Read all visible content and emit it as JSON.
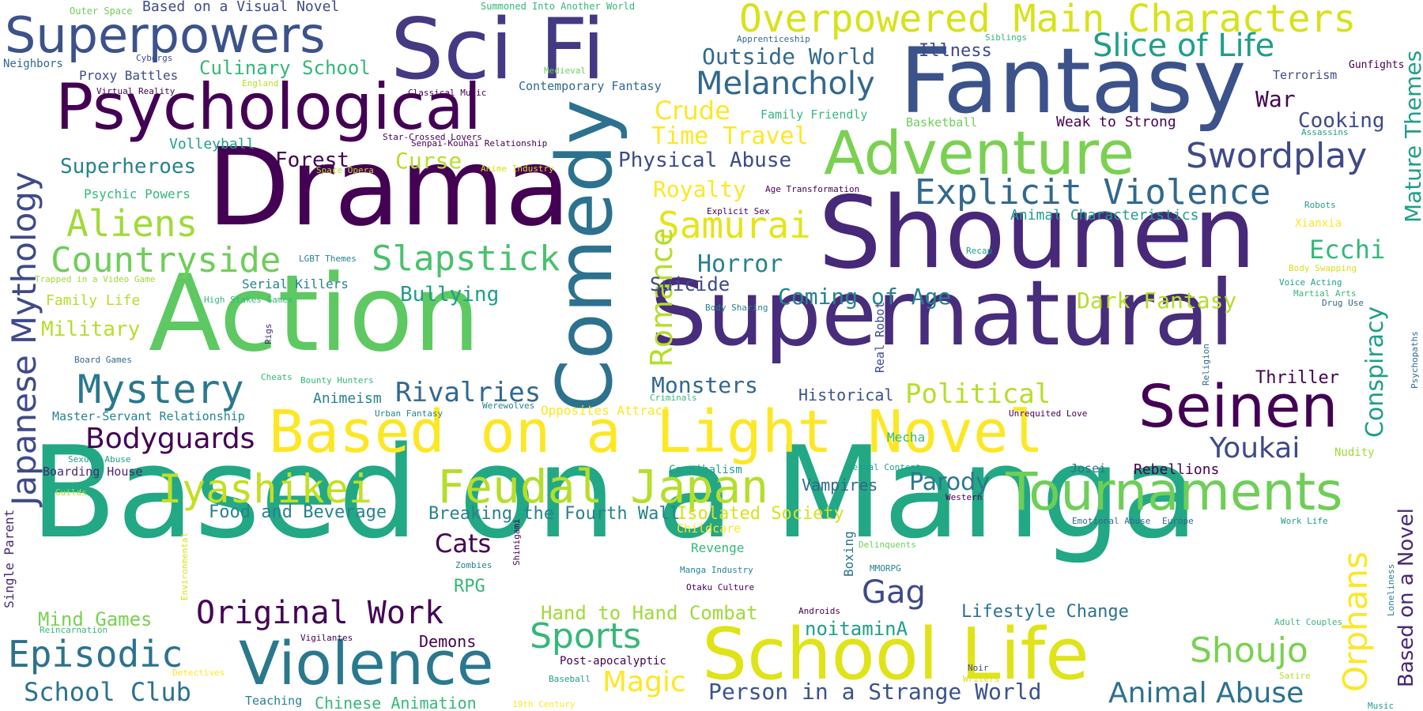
{
  "palette": {
    "dark_purple": "#440154",
    "indigo": "#482878",
    "blue_violet": "#3e4a89",
    "steel_blue": "#31688e",
    "teal_blue": "#26828e",
    "teal": "#1f9e89",
    "green_teal": "#35b779",
    "green": "#6ece58",
    "lime": "#b5de2b",
    "yellow": "#fde725",
    "background": "#ffffff"
  },
  "words": [
    {
      "text": "Based on a Manga",
      "color": "#22a884"
    },
    {
      "text": "Action",
      "color": "#5ec962"
    },
    {
      "text": "Drama",
      "color": "#440154"
    },
    {
      "text": "Shounen",
      "color": "#482878"
    },
    {
      "text": "Supernatural",
      "color": "#472d7b"
    },
    {
      "text": "Fantasy",
      "color": "#3b528b"
    },
    {
      "text": "Sci Fi",
      "color": "#443983"
    },
    {
      "text": "Comedy",
      "color": "#2c728e"
    },
    {
      "text": "School Life",
      "color": "#dfe318"
    },
    {
      "text": "Based on a Light Novel",
      "color": "#fde725"
    },
    {
      "text": "Psychological",
      "color": "#440154"
    },
    {
      "text": "Adventure",
      "color": "#7ad151"
    },
    {
      "text": "Violence",
      "color": "#2a788e"
    },
    {
      "text": "Superpowers",
      "color": "#3b528b"
    },
    {
      "text": "Overpowered Main Characters",
      "color": "#d8e219"
    },
    {
      "text": "Tournaments",
      "color": "#6ece58"
    },
    {
      "text": "Feudal Japan",
      "color": "#b5de2b"
    },
    {
      "text": "Seinen",
      "color": "#440154"
    },
    {
      "text": "Iyashikei",
      "color": "#c2df23"
    },
    {
      "text": "Mystery",
      "color": "#2a788e"
    },
    {
      "text": "Episodic",
      "color": "#2c728e"
    },
    {
      "text": "Explicit Violence",
      "color": "#31688e"
    },
    {
      "text": "Swordplay",
      "color": "#3e4a89"
    },
    {
      "text": "Slice of Life",
      "color": "#1f9e89"
    },
    {
      "text": "Aliens",
      "color": "#a0da39"
    },
    {
      "text": "Countryside",
      "color": "#6ece58"
    },
    {
      "text": "Slapstick",
      "color": "#4ac16d"
    },
    {
      "text": "Original Work",
      "color": "#440154"
    },
    {
      "text": "Sports",
      "color": "#35b779"
    },
    {
      "text": "Shoujo",
      "color": "#7ad151"
    },
    {
      "text": "Samurai",
      "color": "#e5e419"
    },
    {
      "text": "Melancholy",
      "color": "#31688e"
    },
    {
      "text": "Japanese Mythology",
      "color": "#3e4a89"
    },
    {
      "text": "Bodyguards",
      "color": "#440154"
    },
    {
      "text": "Youkai",
      "color": "#3e4a89"
    },
    {
      "text": "Orphans",
      "color": "#fde725"
    },
    {
      "text": "Animal Abuse",
      "color": "#2c728e"
    },
    {
      "text": "School Club",
      "color": "#2c728e"
    },
    {
      "text": "Magic",
      "color": "#fde725"
    },
    {
      "text": "Gag",
      "color": "#3e4a89"
    },
    {
      "text": "Political",
      "color": "#b5de2b"
    },
    {
      "text": "Rivalries",
      "color": "#31688e"
    },
    {
      "text": "Romance",
      "color": "#b5de2b"
    },
    {
      "text": "Cats",
      "color": "#440154"
    },
    {
      "text": "Mature Themes",
      "color": "#1f9e89"
    },
    {
      "text": "Person in a Strange World",
      "color": "#3b528b"
    },
    {
      "text": "Crude",
      "color": "#fde725"
    },
    {
      "text": "Time Travel",
      "color": "#fde725"
    },
    {
      "text": "Horror",
      "color": "#26828e"
    },
    {
      "text": "Coming of Age",
      "color": "#26828e"
    },
    {
      "text": "Dark Fantasy",
      "color": "#b5de2b"
    },
    {
      "text": "Parody",
      "color": "#2a788e"
    },
    {
      "text": "Conspiracy",
      "color": "#1f9e89"
    },
    {
      "text": "Based on a Novel",
      "color": "#482878"
    },
    {
      "text": "Royalty",
      "color": "#fde725"
    },
    {
      "text": "Monsters",
      "color": "#31688e"
    },
    {
      "text": "Ecchi",
      "color": "#35b779"
    },
    {
      "text": "Outside World",
      "color": "#31688e"
    },
    {
      "text": "War",
      "color": "#440154"
    },
    {
      "text": "Cooking",
      "color": "#3e4a89"
    },
    {
      "text": "Physical Abuse",
      "color": "#3e4a89"
    },
    {
      "text": "Curse",
      "color": "#b5de2b"
    },
    {
      "text": "Superheroes",
      "color": "#26828e"
    },
    {
      "text": "Forest",
      "color": "#440154"
    },
    {
      "text": "Military",
      "color": "#b5de2b"
    },
    {
      "text": "Bullying",
      "color": "#1f9e89"
    },
    {
      "text": "Culinary School",
      "color": "#35b779"
    },
    {
      "text": "Hand to Hand Combat",
      "color": "#a0da39"
    },
    {
      "text": "Food and Beverage",
      "color": "#26828e"
    },
    {
      "text": "Breaking the Fourth Wall",
      "color": "#26828e"
    },
    {
      "text": "Isolated Society",
      "color": "#d8e219"
    },
    {
      "text": "Mind Games",
      "color": "#7ad151"
    },
    {
      "text": "noitaminA",
      "color": "#1f9e89"
    },
    {
      "text": "Lifestyle Change",
      "color": "#2c728e"
    },
    {
      "text": "Chinese Animation",
      "color": "#35b779"
    },
    {
      "text": "Illness",
      "color": "#3e4a89"
    },
    {
      "text": "Suicide",
      "color": "#3e4a89"
    },
    {
      "text": "Historical",
      "color": "#3b528b"
    },
    {
      "text": "Thriller",
      "color": "#440154"
    },
    {
      "text": "Demons",
      "color": "#440154"
    },
    {
      "text": "Vampires",
      "color": "#31688e"
    },
    {
      "text": "Animeism",
      "color": "#26828e"
    },
    {
      "text": "Rebellions",
      "color": "#440154"
    },
    {
      "text": "RPG",
      "color": "#35b779"
    },
    {
      "text": "Family Life",
      "color": "#b5de2b"
    },
    {
      "text": "Volleyball",
      "color": "#1f9e89"
    },
    {
      "text": "Proxy Battles",
      "color": "#3e4a89"
    },
    {
      "text": "Single Parent",
      "color": "#482878"
    },
    {
      "text": "Weak to Strong",
      "color": "#440154"
    },
    {
      "text": "Animal Characteristics",
      "color": "#1f9e89"
    },
    {
      "text": "Serial Killers",
      "color": "#26828e"
    },
    {
      "text": "Psychic Powers",
      "color": "#35b779"
    },
    {
      "text": "Contemporary Fantasy",
      "color": "#31688e"
    },
    {
      "text": "Boarding House",
      "color": "#482878"
    },
    {
      "text": "Master-Servant Relationship",
      "color": "#26828e"
    },
    {
      "text": "Neighbors",
      "color": "#31688e"
    },
    {
      "text": "Mecha",
      "color": "#35b779"
    },
    {
      "text": "Revenge",
      "color": "#35b779"
    },
    {
      "text": "Boxing",
      "color": "#2c728e"
    },
    {
      "text": "Opposites Attract",
      "color": "#fde725"
    },
    {
      "text": "Based on a Visual Novel",
      "color": "#3e4a89"
    },
    {
      "text": "Real Robot",
      "color": "#3e4a89"
    },
    {
      "text": "Family Friendly",
      "color": "#35b779"
    },
    {
      "text": "Basketball",
      "color": "#6ece58"
    },
    {
      "text": "Childcare",
      "color": "#fde725"
    },
    {
      "text": "Josei",
      "color": "#2c728e"
    },
    {
      "text": "Terrorism",
      "color": "#3e4a89"
    },
    {
      "text": "Teaching",
      "color": "#26828e"
    },
    {
      "text": "Xianxia",
      "color": "#fde725"
    },
    {
      "text": "Nudity",
      "color": "#a0da39"
    },
    {
      "text": "Cannibalism",
      "color": "#1f9e89"
    },
    {
      "text": "Post-apocalyptic",
      "color": "#440154"
    },
    {
      "text": "Gunfights",
      "color": "#440154"
    },
    {
      "text": "Summoned Into Another World",
      "color": "#35b779"
    },
    {
      "text": "Outer Space",
      "color": "#6ece58"
    },
    {
      "text": "Cyborgs",
      "color": "#3e4a89"
    },
    {
      "text": "Virtual Reality",
      "color": "#440154"
    },
    {
      "text": "England",
      "color": "#b5de2b"
    },
    {
      "text": "Medieval",
      "color": "#6ece58"
    },
    {
      "text": "Classical Music",
      "color": "#440154"
    },
    {
      "text": "Apprenticeship",
      "color": "#31688e"
    },
    {
      "text": "Siblings",
      "color": "#35b779"
    },
    {
      "text": "Star-Crossed Lovers",
      "color": "#440154"
    },
    {
      "text": "Senpai-Kouhai Relationship",
      "color": "#440154"
    },
    {
      "text": "Space Opera",
      "color": "#b5de2b"
    },
    {
      "text": "Anime Industry",
      "color": "#d8e219"
    },
    {
      "text": "Age Transformation",
      "color": "#440154"
    },
    {
      "text": "Explicit Sex",
      "color": "#440154"
    },
    {
      "text": "Assassins",
      "color": "#1f9e89"
    },
    {
      "text": "Robots",
      "color": "#1f9e89"
    },
    {
      "text": "Trapped in a Video Game",
      "color": "#a0da39"
    },
    {
      "text": "LGBT Themes",
      "color": "#26828e"
    },
    {
      "text": "High Stakes Games",
      "color": "#35b779"
    },
    {
      "text": "Pigs",
      "color": "#482878"
    },
    {
      "text": "Board Games",
      "color": "#31688e"
    },
    {
      "text": "Cheats",
      "color": "#35b779"
    },
    {
      "text": "Bounty Hunters",
      "color": "#35b779"
    },
    {
      "text": "Urban Fantasy",
      "color": "#26828e"
    },
    {
      "text": "Werewolves",
      "color": "#26828e"
    },
    {
      "text": "Criminals",
      "color": "#35b779"
    },
    {
      "text": "Recap",
      "color": "#1f9e89"
    },
    {
      "text": "Body Swapping",
      "color": "#d8e219"
    },
    {
      "text": "Voice Acting",
      "color": "#1f9e89"
    },
    {
      "text": "Martial Arts",
      "color": "#35b779"
    },
    {
      "text": "Drug Use",
      "color": "#31688e"
    },
    {
      "text": "Psychopaths",
      "color": "#31688e"
    },
    {
      "text": "Religion",
      "color": "#31688e"
    },
    {
      "text": "Body Sharing",
      "color": "#26828e"
    },
    {
      "text": "Unrequited Love",
      "color": "#440154"
    },
    {
      "text": "Sexual Abuse",
      "color": "#1f9e89"
    },
    {
      "text": "Guilds",
      "color": "#b5de2b"
    },
    {
      "text": "Environmental",
      "color": "#d8e219"
    },
    {
      "text": "Zombies",
      "color": "#26828e"
    },
    {
      "text": "Shinigami",
      "color": "#440154"
    },
    {
      "text": "Manga Industry",
      "color": "#26828e"
    },
    {
      "text": "Otaku Culture",
      "color": "#440154"
    },
    {
      "text": "Delinquents",
      "color": "#6ece58"
    },
    {
      "text": "MMORPG",
      "color": "#26828e"
    },
    {
      "text": "Sexual Content",
      "color": "#1f9e89"
    },
    {
      "text": "Western",
      "color": "#440154"
    },
    {
      "text": "Emotional Abuse",
      "color": "#31688e"
    },
    {
      "text": "Europe",
      "color": "#31688e"
    },
    {
      "text": "Work Life",
      "color": "#1f9e89"
    },
    {
      "text": "Loneliness",
      "color": "#26828e"
    },
    {
      "text": "Adult Couples",
      "color": "#35b779"
    },
    {
      "text": "Androids",
      "color": "#440154"
    },
    {
      "text": "Reincarnation",
      "color": "#35b779"
    },
    {
      "text": "Vigilantes",
      "color": "#440154"
    },
    {
      "text": "Detectives",
      "color": "#fde725"
    },
    {
      "text": "Baseball",
      "color": "#1f9e89"
    },
    {
      "text": "Noir",
      "color": "#3e4a89"
    },
    {
      "text": "Writers",
      "color": "#d8e219"
    },
    {
      "text": "Satire",
      "color": "#b5de2b"
    },
    {
      "text": "19th Century",
      "color": "#fde725"
    },
    {
      "text": "Music",
      "color": "#1f9e89"
    }
  ]
}
